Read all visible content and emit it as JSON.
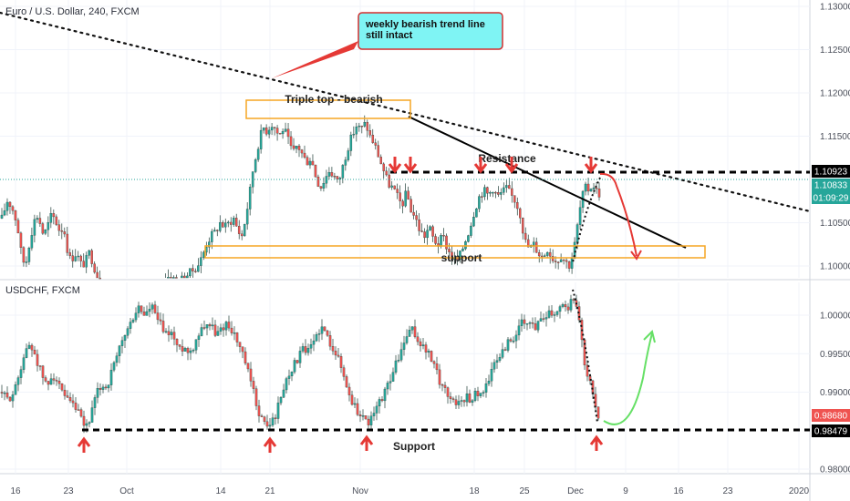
{
  "chart_data": [
    {
      "type": "candlestick",
      "title": "Euro / U.S. Dollar, 240, FXCM",
      "y_ticks": [
        "1.13000",
        "1.12500",
        "1.12000",
        "1.11500",
        "1.10500",
        "1.10000"
      ],
      "price_badges": [
        {
          "label": "1.10923",
          "color": "#000000"
        },
        {
          "label": "1.10833",
          "color": "#26a69a"
        },
        {
          "label": "01:09:29",
          "color": "#26a69a"
        }
      ],
      "annotations": {
        "callout": "weekly bearish trend line\nstill intact",
        "triple_top": "Triple top - bearish",
        "resistance": "Resistance",
        "support": "support"
      },
      "path": [
        [
          0,
          1.1055
        ],
        [
          6,
          1.1075
        ],
        [
          10,
          1.107
        ],
        [
          14,
          1.106
        ],
        [
          18,
          1.104
        ],
        [
          22,
          1.101
        ],
        [
          26,
          1.1
        ],
        [
          30,
          1.1025
        ],
        [
          34,
          1.1045
        ],
        [
          38,
          1.106
        ],
        [
          42,
          1.105
        ],
        [
          46,
          1.1035
        ],
        [
          50,
          1.1045
        ],
        [
          55,
          1.106
        ],
        [
          60,
          1.105
        ],
        [
          64,
          1.104
        ],
        [
          68,
          1.1045
        ],
        [
          72,
          1.102
        ],
        [
          76,
          1.1005
        ],
        [
          80,
          1.1015
        ],
        [
          84,
          1.101
        ],
        [
          88,
          1.1
        ],
        [
          92,
          1.1005
        ],
        [
          96,
          1.1015
        ],
        [
          100,
          1.1005
        ],
        [
          104,
          1.099
        ],
        [
          108,
          1.0985
        ],
        [
          112,
          1.097
        ],
        [
          116,
          1.096
        ],
        [
          120,
          1.095
        ],
        [
          126,
          1.0955
        ],
        [
          132,
          1.0945
        ],
        [
          138,
          1.0955
        ],
        [
          144,
          1.095
        ],
        [
          150,
          1.096
        ],
        [
          156,
          1.0955
        ],
        [
          162,
          1.0965
        ],
        [
          168,
          1.0975
        ],
        [
          174,
          1.098
        ],
        [
          180,
          1.0985
        ],
        [
          186,
          1.099
        ],
        [
          192,
          1.098
        ],
        [
          198,
          1.0985
        ],
        [
          204,
          1.099
        ],
        [
          210,
          1.0995
        ],
        [
          215,
          1.1
        ],
        [
          220,
          1.101
        ],
        [
          225,
          1.1025
        ],
        [
          230,
          1.1035
        ],
        [
          235,
          1.104
        ],
        [
          240,
          1.105
        ],
        [
          245,
          1.1045
        ],
        [
          250,
          1.105
        ],
        [
          255,
          1.1055
        ],
        [
          260,
          1.104
        ],
        [
          264,
          1.1035
        ],
        [
          268,
          1.1055
        ],
        [
          272,
          1.108
        ],
        [
          276,
          1.111
        ],
        [
          280,
          1.113
        ],
        [
          284,
          1.115
        ],
        [
          288,
          1.116
        ],
        [
          292,
          1.1155
        ],
        [
          296,
          1.1165
        ],
        [
          300,
          1.116
        ],
        [
          305,
          1.115
        ],
        [
          310,
          1.116
        ],
        [
          315,
          1.1145
        ],
        [
          320,
          1.113
        ],
        [
          325,
          1.114
        ],
        [
          330,
          1.113
        ],
        [
          335,
          1.112
        ],
        [
          340,
          1.1125
        ],
        [
          345,
          1.1105
        ],
        [
          350,
          1.109
        ],
        [
          355,
          1.11
        ],
        [
          360,
          1.111
        ],
        [
          365,
          1.1105
        ],
        [
          370,
          1.1095
        ],
        [
          375,
          1.1115
        ],
        [
          380,
          1.1135
        ],
        [
          385,
          1.115
        ],
        [
          390,
          1.1162
        ],
        [
          395,
          1.1158
        ],
        [
          400,
          1.1165
        ],
        [
          405,
          1.115
        ],
        [
          410,
          1.114
        ],
        [
          415,
          1.1125
        ],
        [
          420,
          1.111
        ],
        [
          425,
          1.1095
        ],
        [
          430,
          1.109
        ],
        [
          435,
          1.108
        ],
        [
          440,
          1.107
        ],
        [
          445,
          1.1085
        ],
        [
          450,
          1.1065
        ],
        [
          455,
          1.1055
        ],
        [
          460,
          1.104
        ],
        [
          465,
          1.1035
        ],
        [
          470,
          1.1045
        ],
        [
          475,
          1.103
        ],
        [
          480,
          1.1025
        ],
        [
          485,
          1.1035
        ],
        [
          490,
          1.102
        ],
        [
          495,
          1.101
        ],
        [
          500,
          1.1005
        ],
        [
          505,
          1.1015
        ],
        [
          510,
          1.103
        ],
        [
          515,
          1.1045
        ],
        [
          520,
          1.1065
        ],
        [
          525,
          1.108
        ],
        [
          530,
          1.1088
        ],
        [
          535,
          1.1082
        ],
        [
          540,
          1.109
        ],
        [
          545,
          1.108
        ],
        [
          550,
          1.1085
        ],
        [
          555,
          1.109
        ],
        [
          560,
          1.1082
        ],
        [
          565,
          1.1075
        ],
        [
          570,
          1.106
        ],
        [
          575,
          1.103
        ],
        [
          580,
          1.102
        ],
        [
          585,
          1.1025
        ],
        [
          590,
          1.1015
        ],
        [
          595,
          1.101
        ],
        [
          600,
          1.102
        ],
        [
          605,
          1.101
        ],
        [
          610,
          1.1005
        ],
        [
          615,
          1.1012
        ],
        [
          620,
          1.1005
        ],
        [
          625,
          1.1
        ],
        [
          630,
          1.1025
        ],
        [
          635,
          1.106
        ],
        [
          638,
          1.108
        ],
        [
          642,
          1.109
        ],
        [
          646,
          1.1088
        ],
        [
          650,
          1.1095
        ],
        [
          655,
          1.1085
        ],
        [
          658,
          1.1083
        ]
      ]
    },
    {
      "type": "candlestick",
      "title": "USDCHF, FXCM",
      "y_ticks": [
        "1.00000",
        "0.99500",
        "0.99000",
        "0.98000"
      ],
      "price_badges": [
        {
          "label": "0.98680",
          "color": "#ef5350"
        },
        {
          "label": "0.98479",
          "color": "#000000"
        }
      ],
      "annotations": {
        "support": "Support"
      },
      "x_ticks": [
        "16",
        "23",
        "Oct",
        "14",
        "21",
        "Nov",
        "18",
        "25",
        "Dec",
        "9",
        "16",
        "23",
        "2020"
      ],
      "path": [
        [
          0,
          0.99
        ],
        [
          5,
          0.989
        ],
        [
          10,
          0.9895
        ],
        [
          15,
          0.9905
        ],
        [
          20,
          0.993
        ],
        [
          25,
          0.995
        ],
        [
          30,
          0.996
        ],
        [
          35,
          0.9955
        ],
        [
          40,
          0.9935
        ],
        [
          45,
          0.992
        ],
        [
          50,
          0.9905
        ],
        [
          55,
          0.9925
        ],
        [
          60,
          0.9915
        ],
        [
          65,
          0.99
        ],
        [
          70,
          0.989
        ],
        [
          75,
          0.9885
        ],
        [
          80,
          0.988
        ],
        [
          85,
          0.987
        ],
        [
          90,
          0.9855
        ],
        [
          95,
          0.986
        ],
        [
          100,
          0.988
        ],
        [
          105,
          0.99
        ],
        [
          110,
          0.991
        ],
        [
          115,
          0.9905
        ],
        [
          120,
          0.9925
        ],
        [
          125,
          0.994
        ],
        [
          130,
          0.996
        ],
        [
          135,
          0.9975
        ],
        [
          140,
          0.9985
        ],
        [
          145,
          1.0
        ],
        [
          150,
          1.001
        ],
        [
          155,
          1.0
        ],
        [
          160,
          1.0005
        ],
        [
          165,
          1.001
        ],
        [
          170,
          0.9995
        ],
        [
          175,
          0.9985
        ],
        [
          180,
          0.9975
        ],
        [
          185,
          0.998
        ],
        [
          190,
          0.9965
        ],
        [
          195,
          0.9955
        ],
        [
          200,
          0.996
        ],
        [
          205,
          0.995
        ],
        [
          210,
          0.996
        ],
        [
          215,
          0.9975
        ],
        [
          220,
          0.9985
        ],
        [
          225,
          0.999
        ],
        [
          230,
          0.9985
        ],
        [
          235,
          0.9975
        ],
        [
          240,
          0.998
        ],
        [
          245,
          0.999
        ],
        [
          250,
          0.9985
        ],
        [
          255,
          0.9975
        ],
        [
          260,
          0.996
        ],
        [
          265,
          0.9945
        ],
        [
          270,
          0.9925
        ],
        [
          275,
          0.9905
        ],
        [
          280,
          0.988
        ],
        [
          285,
          0.9865
        ],
        [
          290,
          0.9855
        ],
        [
          295,
          0.986
        ],
        [
          300,
          0.987
        ],
        [
          305,
          0.989
        ],
        [
          310,
          0.991
        ],
        [
          315,
          0.9925
        ],
        [
          320,
          0.9935
        ],
        [
          325,
          0.9945
        ],
        [
          330,
          0.9955
        ],
        [
          335,
          0.995
        ],
        [
          340,
          0.996
        ],
        [
          345,
          0.9975
        ],
        [
          350,
          0.9985
        ],
        [
          355,
          0.9975
        ],
        [
          360,
          0.9965
        ],
        [
          365,
          0.9955
        ],
        [
          370,
          0.994
        ],
        [
          375,
          0.992
        ],
        [
          380,
          0.99
        ],
        [
          385,
          0.9885
        ],
        [
          390,
          0.9875
        ],
        [
          395,
          0.987
        ],
        [
          400,
          0.986
        ],
        [
          405,
          0.9865
        ],
        [
          410,
          0.9875
        ],
        [
          415,
          0.989
        ],
        [
          420,
          0.99
        ],
        [
          425,
          0.9915
        ],
        [
          430,
          0.993
        ],
        [
          435,
          0.9945
        ],
        [
          440,
          0.996
        ],
        [
          445,
          0.9975
        ],
        [
          450,
          0.998
        ],
        [
          455,
          0.997
        ],
        [
          460,
          0.996
        ],
        [
          465,
          0.9955
        ],
        [
          470,
          0.9945
        ],
        [
          475,
          0.993
        ],
        [
          480,
          0.9915
        ],
        [
          485,
          0.9905
        ],
        [
          490,
          0.9895
        ],
        [
          495,
          0.989
        ],
        [
          500,
          0.9885
        ],
        [
          505,
          0.989
        ],
        [
          510,
          0.9895
        ],
        [
          515,
          0.989
        ],
        [
          520,
          0.99
        ],
        [
          525,
          0.9895
        ],
        [
          530,
          0.991
        ],
        [
          535,
          0.992
        ],
        [
          540,
          0.9935
        ],
        [
          545,
          0.9945
        ],
        [
          550,
          0.9955
        ],
        [
          555,
          0.9965
        ],
        [
          560,
          0.997
        ],
        [
          565,
          0.9975
        ],
        [
          570,
          0.999
        ],
        [
          575,
          0.9985
        ],
        [
          580,
          0.999
        ],
        [
          585,
          0.9985
        ],
        [
          590,
          0.9995
        ],
        [
          595,
          1.0
        ],
        [
          600,
          1.0005
        ],
        [
          605,
          1.0002
        ],
        [
          610,
          1.001
        ],
        [
          615,
          1.0015
        ],
        [
          620,
          1.0008
        ],
        [
          625,
          1.002
        ],
        [
          630,
          1.001
        ],
        [
          635,
          0.998
        ],
        [
          638,
          0.995
        ],
        [
          640,
          0.993
        ],
        [
          643,
          0.992
        ],
        [
          646,
          0.9915
        ],
        [
          648,
          0.9895
        ],
        [
          650,
          0.988
        ],
        [
          653,
          0.9872
        ],
        [
          656,
          0.9868
        ]
      ]
    }
  ]
}
